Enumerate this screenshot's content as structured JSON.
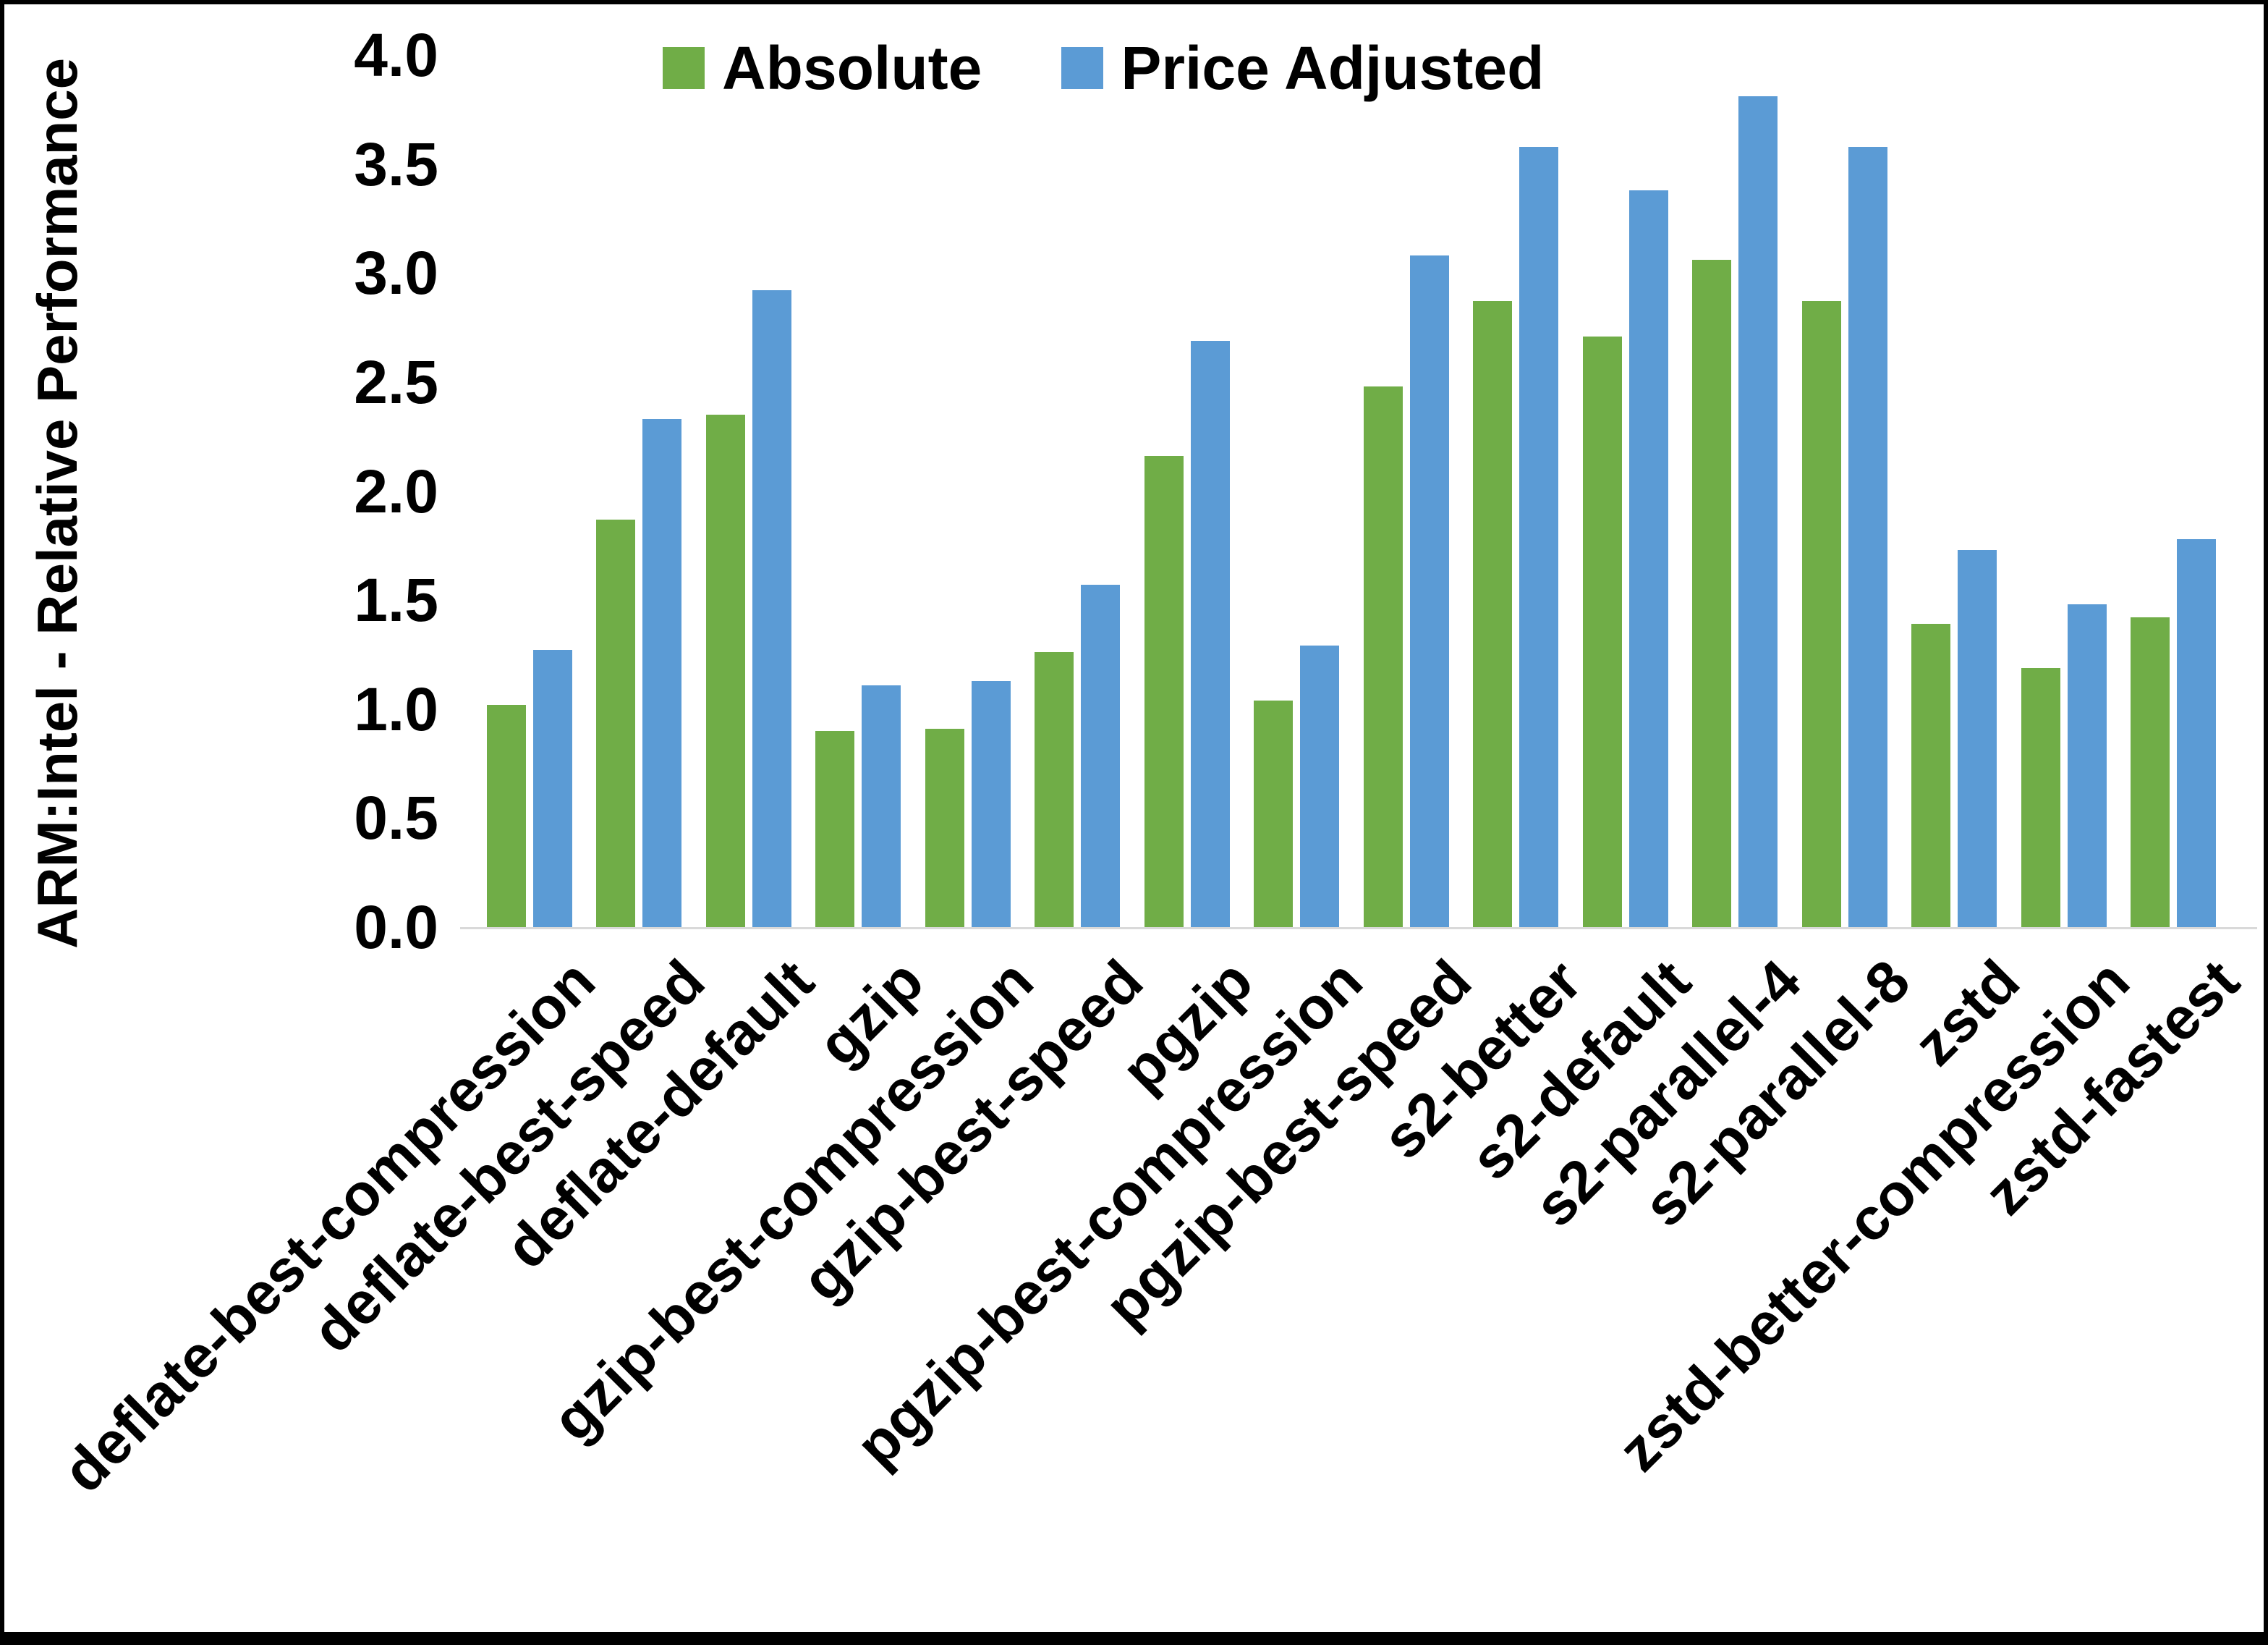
{
  "frame": {
    "background": "#ffffff",
    "border_color": "#000000"
  },
  "chart_data": {
    "type": "bar",
    "title": "",
    "xlabel": "",
    "ylabel": "ARM:Intel - Relative Performance",
    "ylim": [
      0.0,
      4.0
    ],
    "ytick_step": 0.5,
    "yticks": [
      "0.0",
      "0.5",
      "1.0",
      "1.5",
      "2.0",
      "2.5",
      "3.0",
      "3.5",
      "4.0"
    ],
    "grid": false,
    "legend_position": "top",
    "axis_color": "#d9d9d9",
    "text_color": "#000000",
    "categories": [
      "deflate-best-compression",
      "deflate-best-speed",
      "deflate-default",
      "gzip",
      "gzip-best-compression",
      "gzip-best-speed",
      "pgzip",
      "pgzip-best-compression",
      "pgzip-best-speed",
      "s2-better",
      "s2-default",
      "s2-parallel-4",
      "s2-parallel-8",
      "zstd",
      "zstd-better-compression",
      "zstd-fastest"
    ],
    "series": [
      {
        "name": "Absolute",
        "color": "#70AD47",
        "values": [
          1.02,
          1.87,
          2.35,
          0.9,
          0.91,
          1.26,
          2.16,
          1.04,
          2.48,
          2.87,
          2.71,
          3.06,
          2.87,
          1.39,
          1.19,
          1.42
        ]
      },
      {
        "name": "Price Adjusted",
        "color": "#5B9BD5",
        "values": [
          1.27,
          2.33,
          2.92,
          1.11,
          1.13,
          1.57,
          2.69,
          1.29,
          3.08,
          3.58,
          3.38,
          3.81,
          3.58,
          1.73,
          1.48,
          1.78
        ]
      }
    ]
  }
}
